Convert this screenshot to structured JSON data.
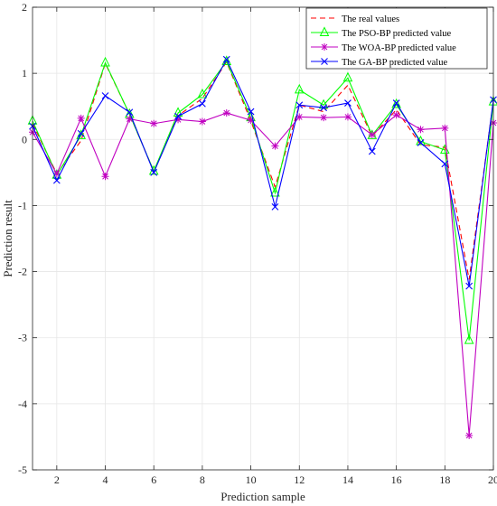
{
  "chart_data": {
    "type": "line",
    "title": "",
    "xlabel": "Prediction sample",
    "ylabel": "Prediction result",
    "xlim": [
      1,
      20
    ],
    "ylim": [
      -5,
      2
    ],
    "xticks": [
      2,
      4,
      6,
      8,
      10,
      12,
      14,
      16,
      18,
      20
    ],
    "yticks": [
      -5,
      -4,
      -3,
      -2,
      -1,
      0,
      1,
      2
    ],
    "grid": true,
    "legend_position": "top-right",
    "x": [
      1,
      2,
      3,
      4,
      5,
      6,
      7,
      8,
      9,
      10,
      11,
      12,
      13,
      14,
      15,
      16,
      17,
      18,
      19,
      20
    ],
    "series": [
      {
        "name": "The real values",
        "color": "#ff0000",
        "line_style": "dashed",
        "marker": "none",
        "values": [
          0.24,
          -0.52,
          -0.02,
          1.15,
          0.38,
          -0.48,
          0.36,
          0.62,
          1.17,
          0.28,
          -0.72,
          0.52,
          0.42,
          0.82,
          0.05,
          0.45,
          -0.08,
          -0.12,
          -2.12,
          0.58
        ]
      },
      {
        "name": "The PSO-BP predicted value",
        "color": "#00ff00",
        "line_style": "solid",
        "marker": "triangle",
        "values": [
          0.28,
          -0.54,
          0.06,
          1.16,
          0.38,
          -0.48,
          0.4,
          0.68,
          1.18,
          0.33,
          -0.81,
          0.75,
          0.52,
          0.93,
          0.06,
          0.53,
          -0.03,
          -0.16,
          -3.04,
          0.57
        ]
      },
      {
        "name": "The WOA-BP predicted value",
        "color": "#c000c0",
        "line_style": "solid",
        "marker": "star",
        "values": [
          0.11,
          -0.52,
          0.32,
          -0.56,
          0.31,
          0.24,
          0.3,
          0.27,
          0.4,
          0.29,
          -0.1,
          0.34,
          0.33,
          0.34,
          0.07,
          0.37,
          0.15,
          0.17,
          -4.48,
          0.25
        ]
      },
      {
        "name": "The GA-BP predicted value",
        "color": "#0000ff",
        "line_style": "solid",
        "marker": "x",
        "values": [
          0.2,
          -0.62,
          0.09,
          0.66,
          0.41,
          -0.5,
          0.35,
          0.54,
          1.21,
          0.42,
          -1.02,
          0.52,
          0.48,
          0.55,
          -0.18,
          0.55,
          -0.05,
          -0.37,
          -2.22,
          0.6
        ]
      }
    ]
  }
}
